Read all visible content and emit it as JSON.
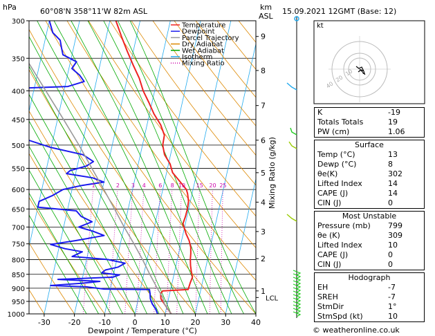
{
  "header": {
    "location": "60°08'N  358°11'W  82m  ASL",
    "datetime": "15.09.2021  12GMT  (Base: 12)",
    "hpa_label": "hPa",
    "km_label": "km",
    "asl_label": "ASL"
  },
  "legend": [
    {
      "label": "Temperature",
      "color": "#ee2222",
      "dash": ""
    },
    {
      "label": "Dewpoint",
      "color": "#1a1aee",
      "dash": ""
    },
    {
      "label": "Parcel Trajectory",
      "color": "#999999",
      "dash": ""
    },
    {
      "label": "Dry Adiabat",
      "color": "#dd8800",
      "dash": ""
    },
    {
      "label": "Wet Adiabat",
      "color": "#00aa00",
      "dash": ""
    },
    {
      "label": "Isotherm",
      "color": "#22aaee",
      "dash": ""
    },
    {
      "label": "Mixing Ratio",
      "color": "#cc00aa",
      "dash": "1,2"
    }
  ],
  "chart_data": {
    "type": "line",
    "xlabel": "Dewpoint / Temperature (°C)",
    "ylabel_right": "Mixing Ratio (g/kg)",
    "xlim": [
      -35,
      40
    ],
    "ylim": [
      1000,
      300
    ],
    "x_ticks": [
      "-30",
      "-20",
      "-10",
      "0",
      "10",
      "20",
      "30",
      "40"
    ],
    "pressure_levels": [
      300,
      350,
      400,
      450,
      500,
      550,
      600,
      650,
      700,
      750,
      800,
      850,
      900,
      950,
      1000
    ],
    "height_ticks": [
      {
        "label": "9",
        "p": 320
      },
      {
        "label": "8",
        "p": 368
      },
      {
        "label": "7",
        "p": 425
      },
      {
        "label": "6",
        "p": 490
      },
      {
        "label": "5",
        "p": 560
      },
      {
        "label": "4",
        "p": 632
      },
      {
        "label": "3",
        "p": 713
      },
      {
        "label": "2",
        "p": 797
      },
      {
        "label": "1",
        "p": 910
      }
    ],
    "lcl_label": "LCL",
    "lcl_p": 935,
    "mixing_ratio_labels": [
      "1",
      "2",
      "3",
      "4",
      "6",
      "8",
      "10",
      "15",
      "20",
      "25"
    ],
    "mixing_ratio_label_p": 590,
    "series": [
      {
        "name": "Temperature",
        "color": "#ee2222",
        "points": [
          [
            1010,
            13
          ],
          [
            1000,
            12
          ],
          [
            980,
            10.5
          ],
          [
            960,
            9
          ],
          [
            940,
            7.5
          ],
          [
            920,
            7
          ],
          [
            910,
            7.5
          ],
          [
            905,
            15.8
          ],
          [
            880,
            16
          ],
          [
            860,
            16.3
          ],
          [
            840,
            15.5
          ],
          [
            820,
            14.8
          ],
          [
            800,
            14.3
          ],
          [
            780,
            14
          ],
          [
            760,
            13.5
          ],
          [
            740,
            12.5
          ],
          [
            720,
            11
          ],
          [
            700,
            9.8
          ],
          [
            690,
            9.2
          ],
          [
            670,
            9.5
          ],
          [
            650,
            9.6
          ],
          [
            630,
            9.4
          ],
          [
            610,
            8.5
          ],
          [
            600,
            7.8
          ],
          [
            580,
            5
          ],
          [
            560,
            2
          ],
          [
            540,
            0.5
          ],
          [
            520,
            -2
          ],
          [
            500,
            -3.3
          ],
          [
            480,
            -3.5
          ],
          [
            460,
            -5.5
          ],
          [
            440,
            -8.5
          ],
          [
            420,
            -11
          ],
          [
            400,
            -13.8
          ],
          [
            380,
            -16
          ],
          [
            360,
            -19
          ],
          [
            340,
            -22
          ],
          [
            320,
            -25
          ],
          [
            300,
            -28
          ]
        ]
      },
      {
        "name": "Dewpoint",
        "color": "#1a1aee",
        "points": [
          [
            1010,
            8.2
          ],
          [
            1000,
            7.5
          ],
          [
            980,
            6.5
          ],
          [
            960,
            5
          ],
          [
            940,
            4
          ],
          [
            920,
            3.5
          ],
          [
            905,
            3
          ],
          [
            903,
            -12
          ],
          [
            895,
            -18
          ],
          [
            890,
            -30
          ],
          [
            882,
            -20
          ],
          [
            875,
            -14
          ],
          [
            868,
            -28
          ],
          [
            860,
            -10
          ],
          [
            852,
            -8
          ],
          [
            845,
            -14
          ],
          [
            835,
            -13
          ],
          [
            825,
            -9
          ],
          [
            812,
            -7
          ],
          [
            800,
            -13
          ],
          [
            790,
            -25
          ],
          [
            775,
            -22
          ],
          [
            765,
            -28
          ],
          [
            752,
            -33
          ],
          [
            740,
            -25
          ],
          [
            725,
            -16
          ],
          [
            712,
            -20
          ],
          [
            700,
            -25
          ],
          [
            685,
            -21
          ],
          [
            670,
            -25
          ],
          [
            655,
            -27
          ],
          [
            645,
            -40
          ],
          [
            630,
            -40
          ],
          [
            615,
            -36
          ],
          [
            600,
            -33
          ],
          [
            590,
            -27
          ],
          [
            582,
            -20
          ],
          [
            572,
            -24
          ],
          [
            562,
            -33
          ],
          [
            555,
            -32
          ],
          [
            545,
            -27
          ],
          [
            535,
            -25
          ],
          [
            520,
            -29
          ],
          [
            505,
            -40
          ],
          [
            490,
            -48
          ],
          [
            475,
            -51
          ],
          [
            460,
            -53
          ],
          [
            445,
            -55
          ],
          [
            430,
            -59
          ],
          [
            420,
            -62
          ],
          [
            410,
            -64
          ],
          [
            398,
            -66
          ],
          [
            393,
            -39
          ],
          [
            385,
            -34
          ],
          [
            375,
            -36
          ],
          [
            365,
            -39
          ],
          [
            355,
            -38
          ],
          [
            345,
            -43
          ],
          [
            335,
            -44
          ],
          [
            325,
            -45
          ],
          [
            315,
            -48
          ],
          [
            300,
            -50
          ]
        ]
      },
      {
        "name": "Parcel Trajectory",
        "color": "#999999",
        "points": [
          [
            1000,
            12
          ],
          [
            960,
            9
          ],
          [
            935,
            8
          ],
          [
            900,
            5.5
          ],
          [
            850,
            2
          ],
          [
            800,
            -1.5
          ],
          [
            750,
            -5.5
          ],
          [
            700,
            -10
          ],
          [
            650,
            -14.5
          ],
          [
            600,
            -19.5
          ],
          [
            550,
            -25
          ],
          [
            500,
            -31
          ],
          [
            450,
            -38
          ],
          [
            400,
            -46
          ],
          [
            350,
            -55
          ],
          [
            300,
            -64
          ]
        ]
      }
    ]
  },
  "hodograph": {
    "label": "kt",
    "ring_labels": [
      "40",
      "20",
      "10"
    ]
  },
  "indices": [
    {
      "label": "K",
      "value": "-19"
    },
    {
      "label": "Totals Totals",
      "value": "19"
    },
    {
      "label": "PW (cm)",
      "value": "1.06"
    }
  ],
  "surface": {
    "title": "Surface",
    "rows": [
      {
        "label": "Temp (°C)",
        "value": "13"
      },
      {
        "label": "Dewp (°C)",
        "value": "8"
      },
      {
        "label": "θe(K)",
        "value": "302"
      },
      {
        "label": "Lifted Index",
        "value": "14"
      },
      {
        "label": "CAPE (J)",
        "value": "14"
      },
      {
        "label": "CIN (J)",
        "value": "0"
      }
    ]
  },
  "most_unstable": {
    "title": "Most Unstable",
    "rows": [
      {
        "label": "Pressure (mb)",
        "value": "799"
      },
      {
        "label": "θe (K)",
        "value": "309"
      },
      {
        "label": "Lifted Index",
        "value": "10"
      },
      {
        "label": "CAPE (J)",
        "value": "0"
      },
      {
        "label": "CIN (J)",
        "value": "0"
      }
    ]
  },
  "hodograph_table": {
    "title": "Hodograph",
    "rows": [
      {
        "label": "EH",
        "value": "-7"
      },
      {
        "label": "SREH",
        "value": "-7"
      },
      {
        "label": "StmDir",
        "value": "1°"
      },
      {
        "label": "StmSpd (kt)",
        "value": "10"
      }
    ]
  },
  "footer": {
    "credit": "© weatheronline.co.uk"
  },
  "colors": {
    "isotherm": "#22aaee",
    "dry_adiabat": "#dd8800",
    "wet_adiabat": "#00aa00",
    "mixing_ratio": "#cc00aa",
    "wind": "#22cc22"
  }
}
